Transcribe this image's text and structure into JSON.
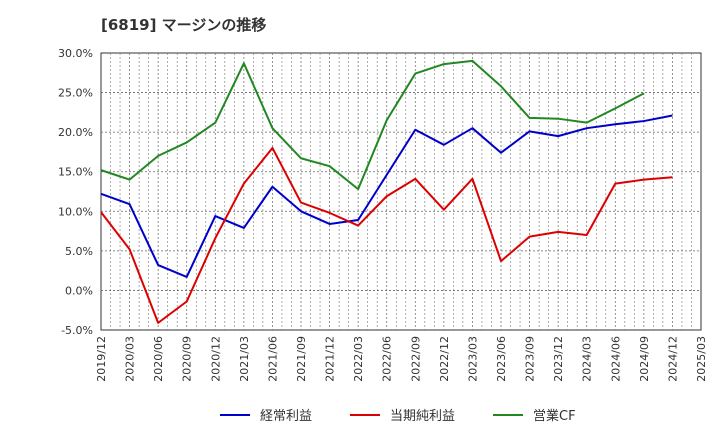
{
  "chart_data": {
    "type": "line",
    "title": "[6819]  マージンの推移",
    "xlabel": "",
    "ylabel": "",
    "ylim": [
      -5,
      30
    ],
    "y_ticks": [
      30,
      25,
      20,
      15,
      10,
      5,
      0,
      -5
    ],
    "y_tick_labels": [
      "30.0%",
      "25.0%",
      "20.0%",
      "15.0%",
      "10.0%",
      "5.0%",
      "0.0%",
      "-5.0%"
    ],
    "categories": [
      "2019/12",
      "2020/03",
      "2020/06",
      "2020/09",
      "2020/12",
      "2021/03",
      "2021/06",
      "2021/09",
      "2021/12",
      "2022/03",
      "2022/06",
      "2022/09",
      "2022/12",
      "2023/03",
      "2023/06",
      "2023/09",
      "2023/12",
      "2024/03",
      "2024/06",
      "2024/09",
      "2024/12",
      "2025/03"
    ],
    "grid": true,
    "legend_position": "bottom",
    "series": [
      {
        "name": "経常利益",
        "color": "#0000cc",
        "values": [
          12.2,
          10.9,
          3.2,
          1.7,
          9.4,
          7.9,
          13.1,
          10.0,
          8.4,
          8.9,
          14.6,
          20.3,
          18.4,
          20.5,
          17.4,
          20.1,
          19.5,
          20.5,
          21.0,
          21.4,
          22.1,
          null
        ]
      },
      {
        "name": "当期純利益",
        "color": "#dd0000",
        "values": [
          9.9,
          5.2,
          -4.1,
          -1.4,
          6.6,
          13.5,
          18.0,
          11.1,
          9.8,
          8.2,
          11.9,
          14.1,
          10.2,
          14.1,
          3.7,
          6.8,
          7.4,
          7.0,
          13.5,
          14.0,
          14.3,
          null
        ]
      },
      {
        "name": "営業CF",
        "color": "#228822",
        "values": [
          15.2,
          14.0,
          17.0,
          18.7,
          21.2,
          28.7,
          20.5,
          16.7,
          15.7,
          12.8,
          21.5,
          27.4,
          28.6,
          29.0,
          25.8,
          21.8,
          21.7,
          21.2,
          23.0,
          24.9,
          null,
          null
        ]
      }
    ]
  }
}
